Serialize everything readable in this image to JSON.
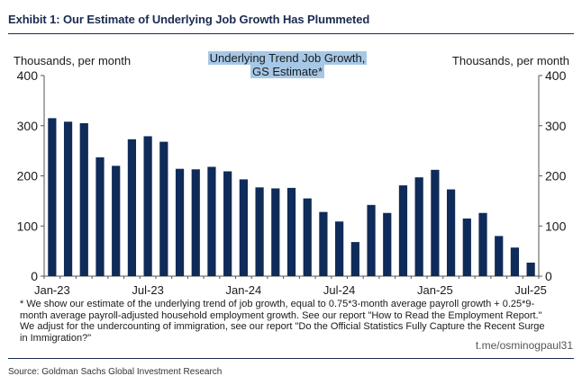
{
  "header": {
    "title": "Exhibit 1: Our Estimate of Underlying Job Growth Has Plummeted"
  },
  "chart_data": {
    "type": "bar",
    "legend": [
      "Underlying Trend Job Growth,",
      "GS Estimate*"
    ],
    "ylabel_left": "Thousands, per month",
    "ylabel_right": "Thousands, per month",
    "ylim": [
      0,
      400
    ],
    "yticks": [
      0,
      100,
      200,
      300,
      400
    ],
    "tick_labels": [
      {
        "index": 0,
        "label": "Jan-23"
      },
      {
        "index": 6,
        "label": "Jul-23"
      },
      {
        "index": 12,
        "label": "Jan-24"
      },
      {
        "index": 18,
        "label": "Jul-24"
      },
      {
        "index": 24,
        "label": "Jan-25"
      },
      {
        "index": 30,
        "label": "Jul-25"
      }
    ],
    "categories": [
      "Jan-23",
      "Feb-23",
      "Mar-23",
      "Apr-23",
      "May-23",
      "Jun-23",
      "Jul-23",
      "Aug-23",
      "Sep-23",
      "Oct-23",
      "Nov-23",
      "Dec-23",
      "Jan-24",
      "Feb-24",
      "Mar-24",
      "Apr-24",
      "May-24",
      "Jun-24",
      "Jul-24",
      "Aug-24",
      "Sep-24",
      "Oct-24",
      "Nov-24",
      "Dec-24",
      "Jan-25",
      "Feb-25",
      "Mar-25",
      "Apr-25",
      "May-25",
      "Jun-25",
      "Jul-25"
    ],
    "values": [
      315,
      308,
      305,
      237,
      220,
      273,
      279,
      268,
      214,
      213,
      218,
      209,
      193,
      177,
      175,
      176,
      155,
      128,
      109,
      68,
      142,
      126,
      181,
      197,
      212,
      173,
      115,
      126,
      80,
      57,
      27
    ],
    "bar_color": "#0e2b59"
  },
  "footnote": "* We show our estimate of the underlying trend of job growth, equal to 0.75*3-month average payroll growth + 0.25*9-month average payroll-adjusted household employment growth.  See our report \"How to Read the Employment Report.\" We adjust for the undercounting of immigration, see our report \"Do the Official Statistics Fully Capture the Recent Surge in Immigration?\"",
  "watermark": "t.me/osminogpaul31",
  "source": "Source: Goldman Sachs Global Investment Research"
}
